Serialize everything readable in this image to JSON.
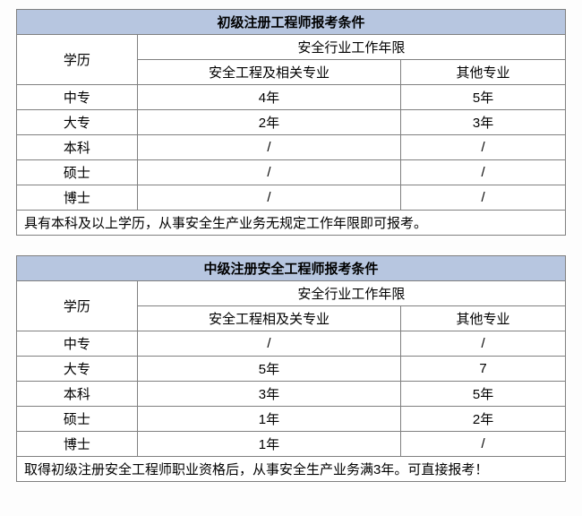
{
  "table1": {
    "title": "初级注册工程师报考条件",
    "header_edu": "学历",
    "header_years": "安全行业工作年限",
    "sub_major": "安全工程及相关专业",
    "sub_other": "其他专业",
    "rows": [
      {
        "edu": "中专",
        "major": "4年",
        "other": "5年"
      },
      {
        "edu": "大专",
        "major": "2年",
        "other": "3年"
      },
      {
        "edu": "本科",
        "major": "/",
        "other": "/"
      },
      {
        "edu": "硕士",
        "major": "/",
        "other": "/"
      },
      {
        "edu": "博士",
        "major": "/",
        "other": "/"
      }
    ],
    "footnote": "具有本科及以上学历，从事安全生产业务无规定工作年限即可报考。"
  },
  "table2": {
    "title": "中级注册安全工程师报考条件",
    "header_edu": "学历",
    "header_years": "安全行业工作年限",
    "sub_major": "安全工程相及关专业",
    "sub_other": "其他专业",
    "rows": [
      {
        "edu": "中专",
        "major": "/",
        "other": "/"
      },
      {
        "edu": "大专",
        "major": "5年",
        "other": "7"
      },
      {
        "edu": "本科",
        "major": "3年",
        "other": "5年"
      },
      {
        "edu": "硕士",
        "major": "1年",
        "other": "2年"
      },
      {
        "edu": "博士",
        "major": "1年",
        "other": "/"
      }
    ],
    "footnote": "取得初级注册安全工程师职业资格后，从事安全生产业务满3年。可直接报考！"
  },
  "colors": {
    "header_bg": "#b7c6e0",
    "border": "#808080",
    "bg": "#ffffff"
  }
}
